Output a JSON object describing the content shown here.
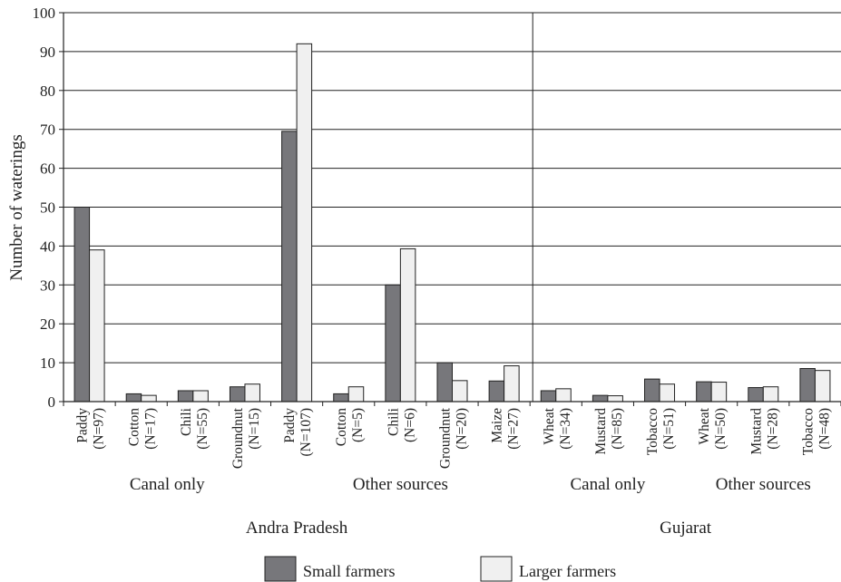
{
  "chart_data": {
    "type": "bar",
    "ylabel": "Number of waterings",
    "ylim": [
      0,
      100
    ],
    "yticks": [
      0,
      10,
      20,
      30,
      40,
      50,
      60,
      70,
      80,
      90,
      100
    ],
    "grid": true,
    "legend_position": "bottom",
    "categories": [
      {
        "label": "Paddy",
        "n": "(N=97)"
      },
      {
        "label": "Cotton",
        "n": "(N=17)"
      },
      {
        "label": "Chili",
        "n": "(N=55)"
      },
      {
        "label": "Groundnut",
        "n": "(N=15)"
      },
      {
        "label": "Paddy",
        "n": "(N=107)"
      },
      {
        "label": "Cotton",
        "n": "(N=5)"
      },
      {
        "label": "Chili",
        "n": "(N=6)"
      },
      {
        "label": "Groundnut",
        "n": "(N=20)"
      },
      {
        "label": "Maize",
        "n": "(N=27)"
      },
      {
        "label": "Wheat",
        "n": "(N=34)"
      },
      {
        "label": "Mustard",
        "n": "(N=85)"
      },
      {
        "label": "Tobacco",
        "n": "(N=51)"
      },
      {
        "label": "Wheat",
        "n": "(N=50)"
      },
      {
        "label": "Mustard",
        "n": "(N=28)"
      },
      {
        "label": "Tobacco",
        "n": "(N=48)"
      }
    ],
    "series": [
      {
        "name": "Small farmers",
        "color": "#77777b",
        "values": [
          50,
          2,
          2.8,
          3.8,
          69.5,
          2,
          30,
          10,
          5.3,
          2.8,
          1.6,
          5.8,
          5.1,
          3.6,
          8.5
        ]
      },
      {
        "name": "Larger farmers",
        "color": "#f0f0f0",
        "values": [
          39,
          1.6,
          2.8,
          4.5,
          92,
          3.8,
          39.3,
          5.4,
          9.2,
          3.3,
          1.5,
          4.5,
          5,
          3.8,
          8
        ]
      }
    ],
    "subgroups": [
      {
        "label": "Canal only",
        "start": 0,
        "end": 3
      },
      {
        "label": "Other sources",
        "start": 4,
        "end": 8
      },
      {
        "label": "Canal only",
        "start": 9,
        "end": 11
      },
      {
        "label": "Other sources",
        "start": 12,
        "end": 14
      }
    ],
    "groups": [
      {
        "label": "Andra Pradesh",
        "start": 0,
        "end": 8
      },
      {
        "label": "Gujarat",
        "start": 9,
        "end": 14
      }
    ]
  }
}
